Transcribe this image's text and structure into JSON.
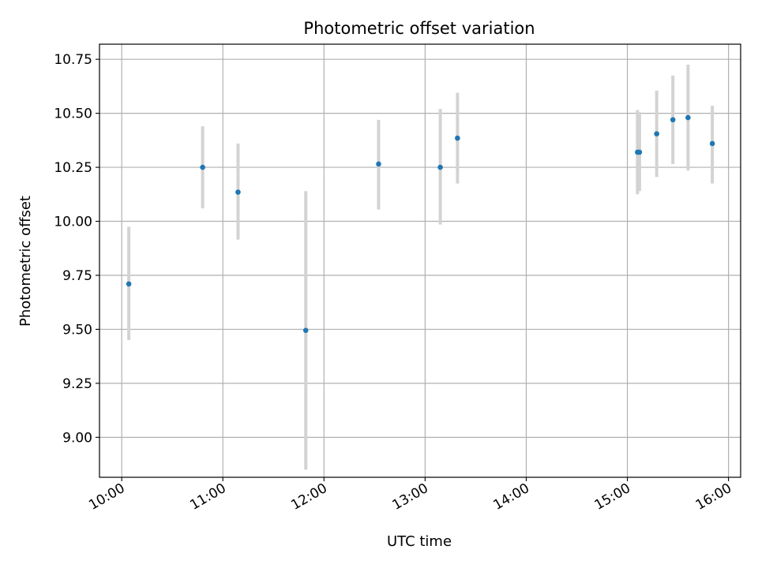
{
  "chart_data": {
    "type": "scatter",
    "title": "Photometric offset variation",
    "xlabel": "UTC time",
    "ylabel": "Photometric offset",
    "x_unit": "hours UTC",
    "xlim": [
      9.78,
      16.12
    ],
    "ylim": [
      8.815,
      10.82
    ],
    "grid": true,
    "x_ticks": [
      {
        "value": 10,
        "label": "10:00"
      },
      {
        "value": 11,
        "label": "11:00"
      },
      {
        "value": 12,
        "label": "12:00"
      },
      {
        "value": 13,
        "label": "13:00"
      },
      {
        "value": 14,
        "label": "14:00"
      },
      {
        "value": 15,
        "label": "15:00"
      },
      {
        "value": 16,
        "label": "16:00"
      }
    ],
    "y_ticks": [
      {
        "value": 9.0,
        "label": "9.00"
      },
      {
        "value": 9.25,
        "label": "9.25"
      },
      {
        "value": 9.5,
        "label": "9.50"
      },
      {
        "value": 9.75,
        "label": "9.75"
      },
      {
        "value": 10.0,
        "label": "10.00"
      },
      {
        "value": 10.25,
        "label": "10.25"
      },
      {
        "value": 10.5,
        "label": "10.50"
      },
      {
        "value": 10.75,
        "label": "10.75"
      }
    ],
    "point_color": "#1f77b4",
    "errorbar_color": "#d3d3d3",
    "points": [
      {
        "x": 10.07,
        "y": 9.71,
        "err_low": 9.45,
        "err_high": 9.975
      },
      {
        "x": 10.8,
        "y": 10.25,
        "err_low": 10.06,
        "err_high": 10.44
      },
      {
        "x": 11.15,
        "y": 10.135,
        "err_low": 9.915,
        "err_high": 10.36
      },
      {
        "x": 11.82,
        "y": 9.495,
        "err_low": 8.85,
        "err_high": 10.14
      },
      {
        "x": 12.54,
        "y": 10.265,
        "err_low": 10.055,
        "err_high": 10.47
      },
      {
        "x": 13.15,
        "y": 10.25,
        "err_low": 9.985,
        "err_high": 10.52
      },
      {
        "x": 13.32,
        "y": 10.385,
        "err_low": 10.175,
        "err_high": 10.595
      },
      {
        "x": 15.1,
        "y": 10.32,
        "err_low": 10.125,
        "err_high": 10.515
      },
      {
        "x": 15.12,
        "y": 10.32,
        "err_low": 10.14,
        "err_high": 10.505
      },
      {
        "x": 15.29,
        "y": 10.405,
        "err_low": 10.205,
        "err_high": 10.605
      },
      {
        "x": 15.45,
        "y": 10.47,
        "err_low": 10.265,
        "err_high": 10.675
      },
      {
        "x": 15.6,
        "y": 10.48,
        "err_low": 10.235,
        "err_high": 10.725
      },
      {
        "x": 15.84,
        "y": 10.36,
        "err_low": 10.175,
        "err_high": 10.535
      }
    ]
  }
}
